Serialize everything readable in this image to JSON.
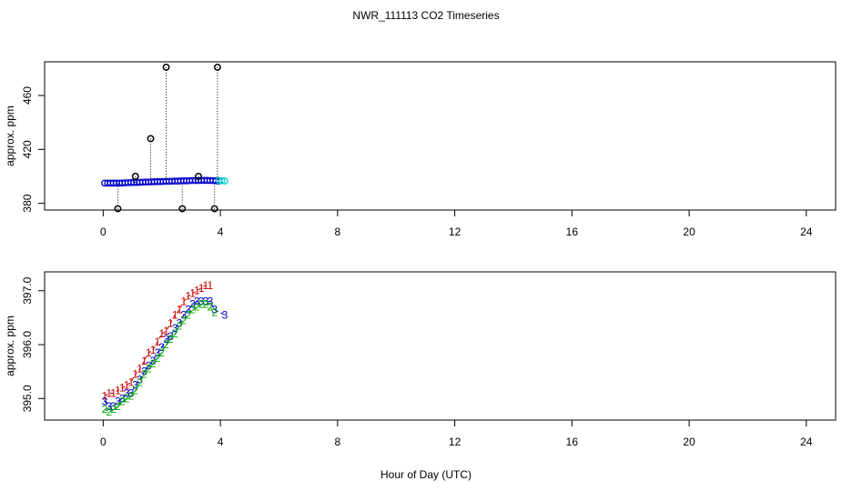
{
  "title": "NWR_111113  CO2 Timeseries",
  "xlabel": "Hour of Day (UTC)",
  "colors": {
    "main": "#0000cc",
    "outlier": "#000000",
    "series1": "#cc0000",
    "series2": "#0000cc",
    "series3": "#00aa00",
    "series4": "#00cccc"
  },
  "chart_data": [
    {
      "type": "scatter",
      "panel": "top",
      "ylabel": "approx. ppm",
      "xlim": [
        -2,
        25
      ],
      "ylim": [
        375,
        485
      ],
      "xticks": [
        "0",
        "4",
        "8",
        "12",
        "16",
        "20",
        "24"
      ],
      "yticks": [
        "380",
        "420",
        "460"
      ],
      "main": {
        "x": [
          0.05,
          0.15,
          0.25,
          0.35,
          0.45,
          0.55,
          0.65,
          0.75,
          0.85,
          0.95,
          1.05,
          1.15,
          1.25,
          1.35,
          1.45,
          1.55,
          1.65,
          1.75,
          1.85,
          1.95,
          2.05,
          2.15,
          2.25,
          2.35,
          2.45,
          2.55,
          2.65,
          2.75,
          2.85,
          2.95,
          3.05,
          3.15,
          3.25,
          3.35,
          3.45,
          3.55,
          3.65,
          3.75,
          3.85,
          3.95
        ],
        "y": [
          395,
          395,
          395,
          395,
          395,
          395,
          395.1,
          395.2,
          395.3,
          395.4,
          395.5,
          395.5,
          395.6,
          395.7,
          395.8,
          395.8,
          395.9,
          396,
          396.1,
          396.1,
          396.2,
          396.3,
          396.3,
          396.4,
          396.5,
          396.5,
          396.6,
          396.7,
          396.7,
          396.8,
          396.9,
          396.9,
          396.9,
          397,
          397,
          397,
          396.9,
          396.8,
          396.7,
          396.6
        ]
      },
      "outliers": {
        "x": [
          0.5,
          1.1,
          1.62,
          2.15,
          2.7,
          3.25,
          3.8,
          3.9
        ],
        "y": [
          376,
          400,
          428,
          481,
          376,
          400,
          376,
          481
        ]
      },
      "tail": {
        "x": [
          3.95,
          4.05,
          4.15
        ],
        "y": [
          397,
          396.8,
          396.6
        ]
      }
    },
    {
      "type": "line",
      "panel": "bottom",
      "ylabel": "approx. ppm",
      "xlim": [
        -2,
        25
      ],
      "ylim": [
        394.6,
        397.35
      ],
      "xticks": [
        "0",
        "4",
        "8",
        "12",
        "16",
        "20",
        "24"
      ],
      "yticks": [
        "395.0",
        "396.0",
        "397.0"
      ],
      "series": [
        {
          "marker": "1",
          "x": [
            0.05,
            0.2,
            0.35,
            0.5,
            0.65,
            0.8,
            0.95,
            1.1,
            1.25,
            1.4,
            1.55,
            1.7,
            1.85,
            2.0,
            2.15,
            2.3,
            2.45,
            2.6,
            2.75,
            2.9,
            3.05,
            3.2,
            3.35,
            3.5,
            3.65
          ],
          "y": [
            395.05,
            395.1,
            395.1,
            395.15,
            395.2,
            395.25,
            395.3,
            395.45,
            395.55,
            395.7,
            395.85,
            395.9,
            396.05,
            396.2,
            396.25,
            396.4,
            396.55,
            396.65,
            396.8,
            396.9,
            396.95,
            397.0,
            397.05,
            397.1,
            397.1
          ]
        },
        {
          "marker": "3",
          "x": [
            0.05,
            0.2,
            0.35,
            0.5,
            0.65,
            0.8,
            0.95,
            1.1,
            1.25,
            1.4,
            1.55,
            1.7,
            1.85,
            2.0,
            2.15,
            2.3,
            2.45,
            2.6,
            2.75,
            2.9,
            3.05,
            3.2,
            3.35,
            3.5,
            3.65,
            3.8,
            4.15
          ],
          "y": [
            394.95,
            394.85,
            394.85,
            394.95,
            395.0,
            395.1,
            395.1,
            395.25,
            395.35,
            395.5,
            395.6,
            395.7,
            395.85,
            395.95,
            396.1,
            396.15,
            396.3,
            396.4,
            396.55,
            396.65,
            396.75,
            396.8,
            396.8,
            396.8,
            396.8,
            396.65,
            396.55
          ]
        },
        {
          "marker": "2",
          "x": [
            0.05,
            0.2,
            0.35,
            0.5,
            0.65,
            0.8,
            0.95,
            1.1,
            1.25,
            1.4,
            1.55,
            1.7,
            1.85,
            2.0,
            2.15,
            2.3,
            2.45,
            2.6,
            2.75,
            2.9,
            3.05,
            3.2,
            3.35,
            3.5,
            3.65,
            3.8
          ],
          "y": [
            394.8,
            394.75,
            394.8,
            394.85,
            394.95,
            395.0,
            395.05,
            395.15,
            395.3,
            395.45,
            395.55,
            395.65,
            395.75,
            395.85,
            396.0,
            396.1,
            396.2,
            396.35,
            396.45,
            396.55,
            396.65,
            396.7,
            396.75,
            396.75,
            396.7,
            396.6
          ]
        }
      ]
    }
  ]
}
